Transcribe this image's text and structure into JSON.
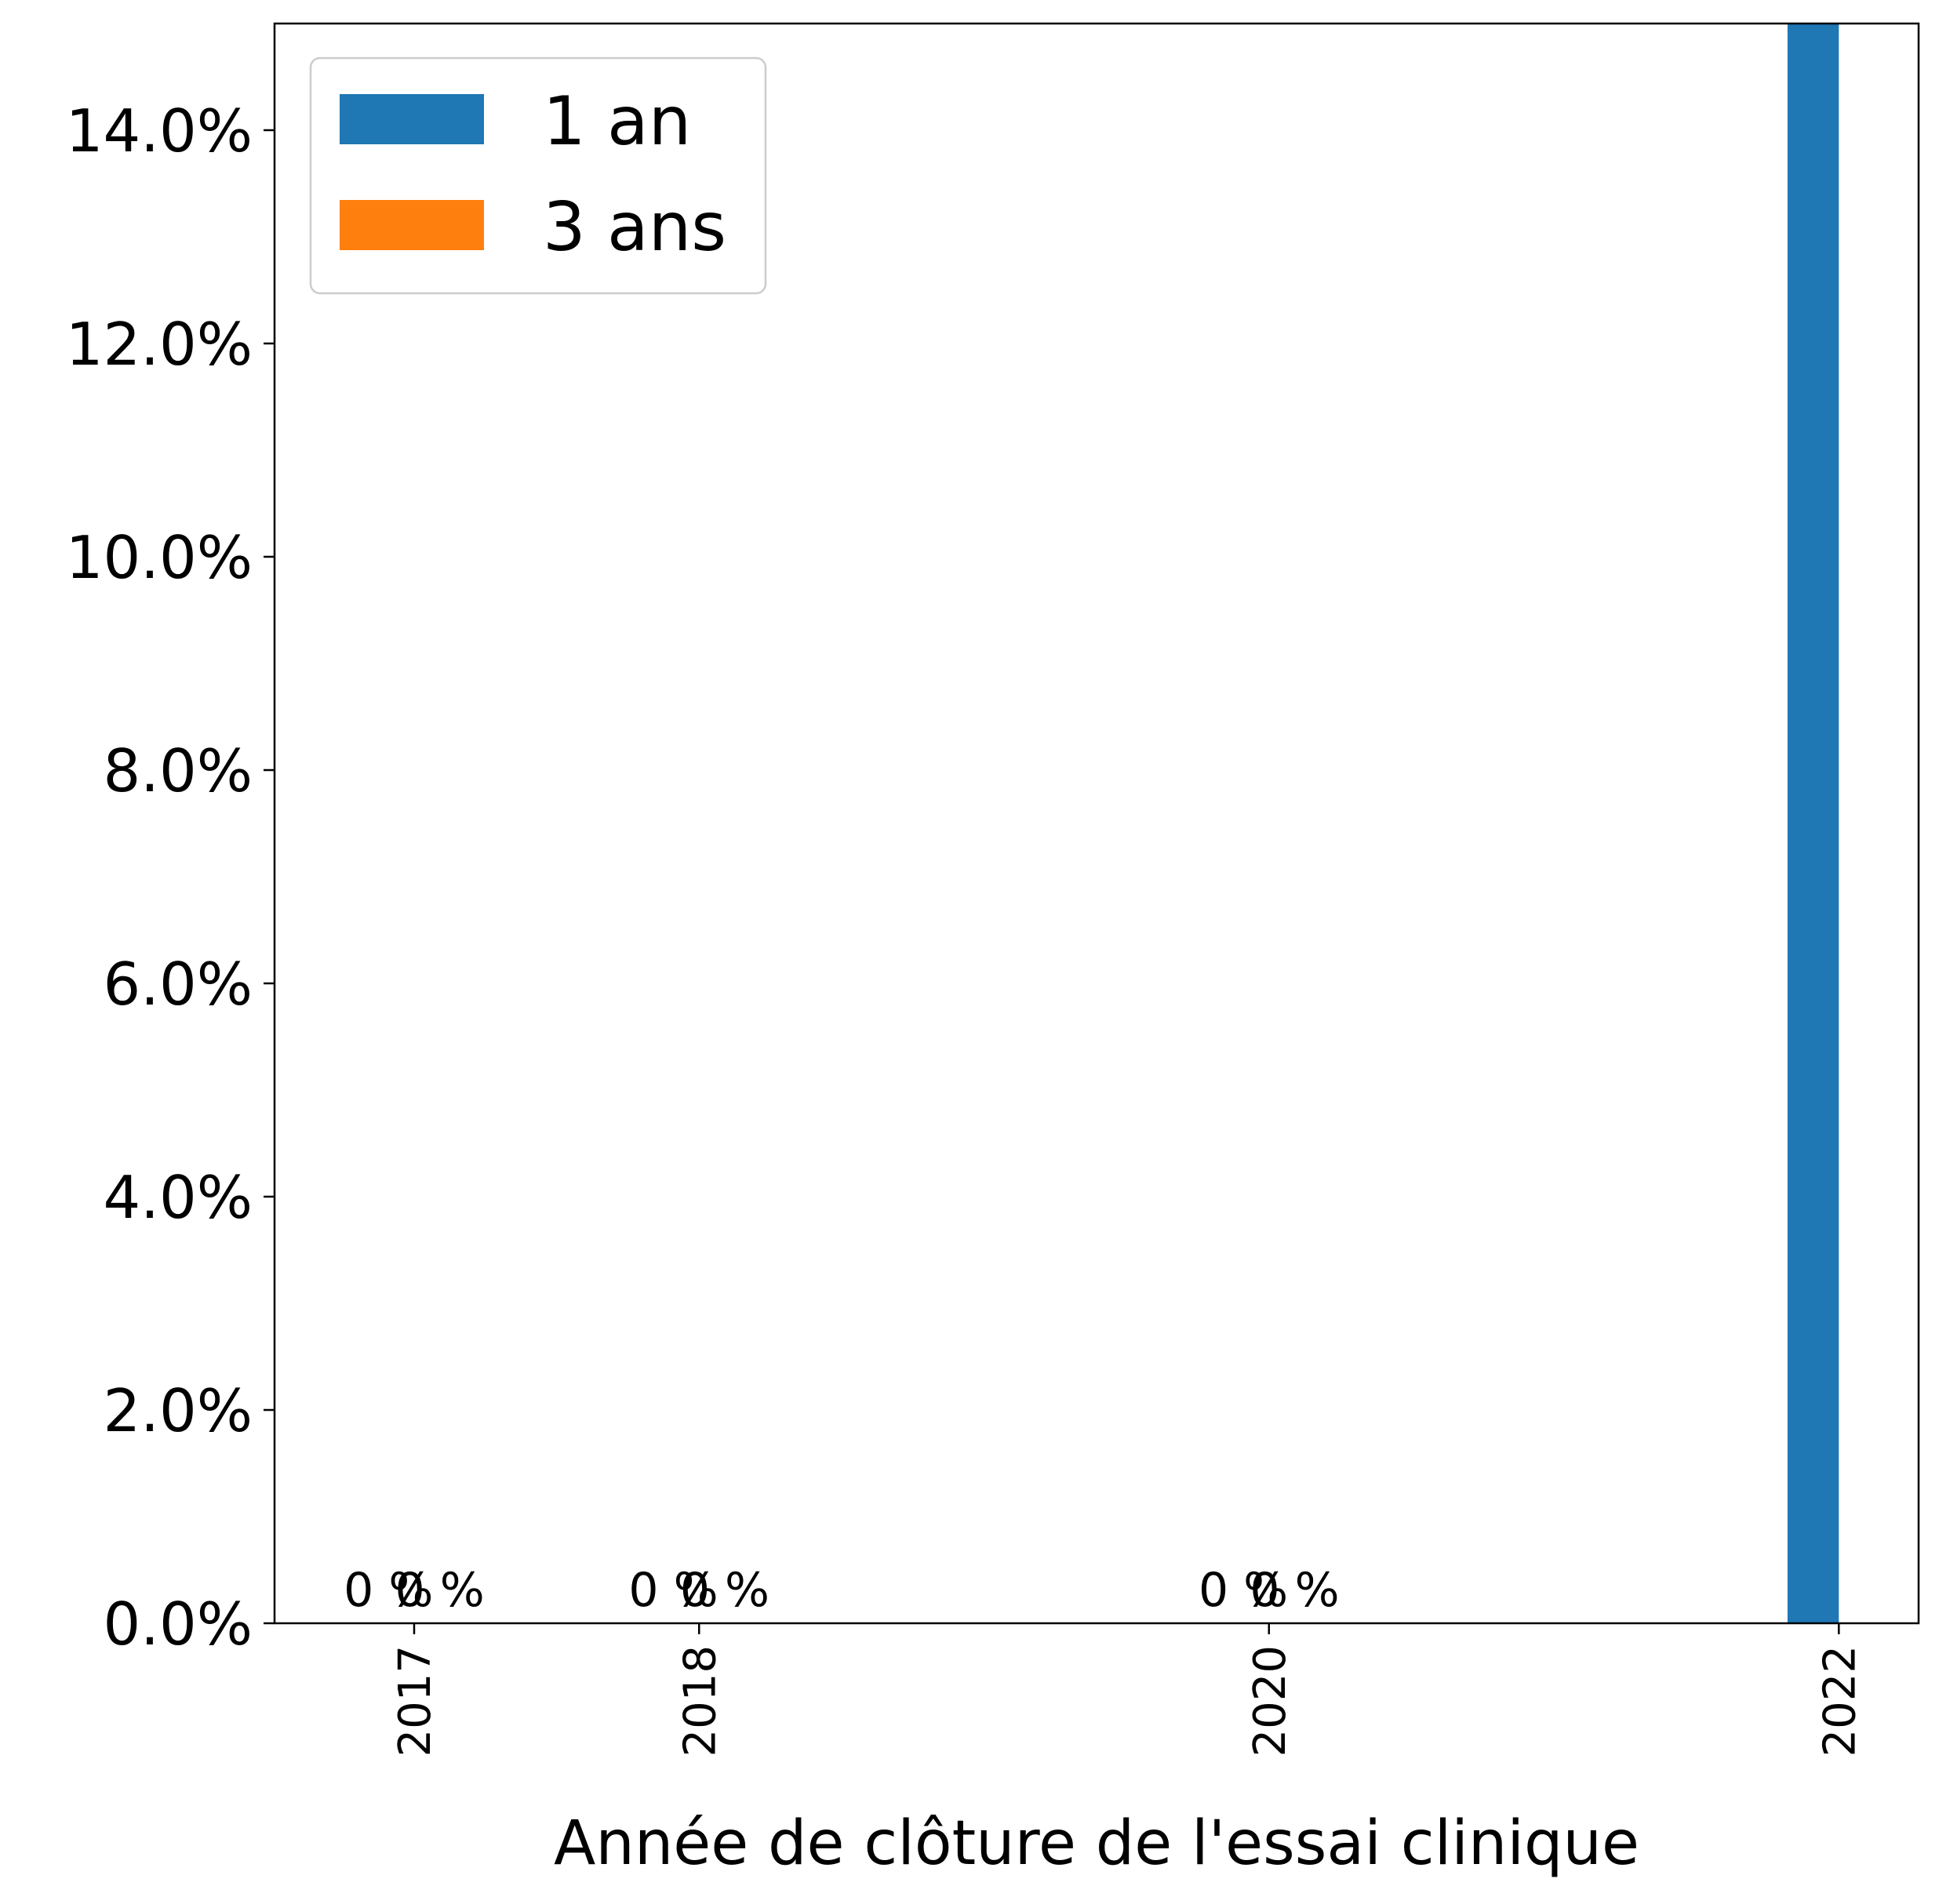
{
  "chart_data": {
    "type": "bar",
    "title": "",
    "xlabel": "Année de clôture de l'essai clinique",
    "ylabel": "",
    "x": [
      2017,
      2018,
      2020,
      2022
    ],
    "x_tick_labels": [
      "2017",
      "2018",
      "2020",
      "2022"
    ],
    "xlim": [
      2016.51,
      2022.28
    ],
    "ylim": [
      0,
      0.15
    ],
    "y_ticks": [
      0,
      0.02,
      0.04,
      0.06,
      0.08,
      0.1,
      0.12,
      0.14
    ],
    "y_tick_labels": [
      "0.0%",
      "2.0%",
      "4.0%",
      "6.0%",
      "8.0%",
      "10.0%",
      "12.0%",
      "14.0%"
    ],
    "series": [
      {
        "name": "1 an",
        "color": "#1f77b4",
        "values": [
          0,
          0,
          0,
          0.15
        ],
        "labels": [
          "0 %",
          "0 %",
          "0 %",
          ""
        ]
      },
      {
        "name": "3 ans",
        "color": "#ff7f0e",
        "values": [
          0,
          0,
          0,
          0
        ],
        "labels": [
          "0 %",
          "0 %",
          "0 %",
          ""
        ]
      }
    ],
    "grid": false,
    "legend_position": "top-left"
  }
}
